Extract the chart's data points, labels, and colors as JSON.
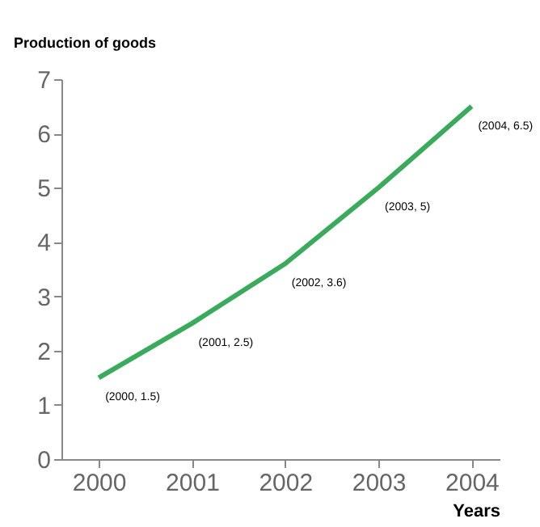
{
  "chart_data": {
    "type": "line",
    "xlabel": "Years",
    "ylabel": "Production of goods",
    "x": [
      2000,
      2001,
      2002,
      2003,
      2004
    ],
    "series": [
      {
        "color": "#3aaa5c",
        "values": [
          1.5,
          2.5,
          3.6,
          5,
          6.5
        ],
        "value_labels": [
          "(2000, 1.5)",
          "(2001, 2.5)",
          "(2002, 3.6)",
          "(2003, 5)",
          "(2004, 6.5)"
        ]
      }
    ],
    "xlim": [
      1999.6,
      2004.3
    ],
    "xticks": [
      2000,
      2001,
      2002,
      2003,
      2004
    ],
    "ylim": [
      0,
      7
    ],
    "yticks": [
      0,
      1,
      2,
      3,
      4,
      5,
      6,
      7
    ],
    "grid": false,
    "line_style": "solid"
  }
}
